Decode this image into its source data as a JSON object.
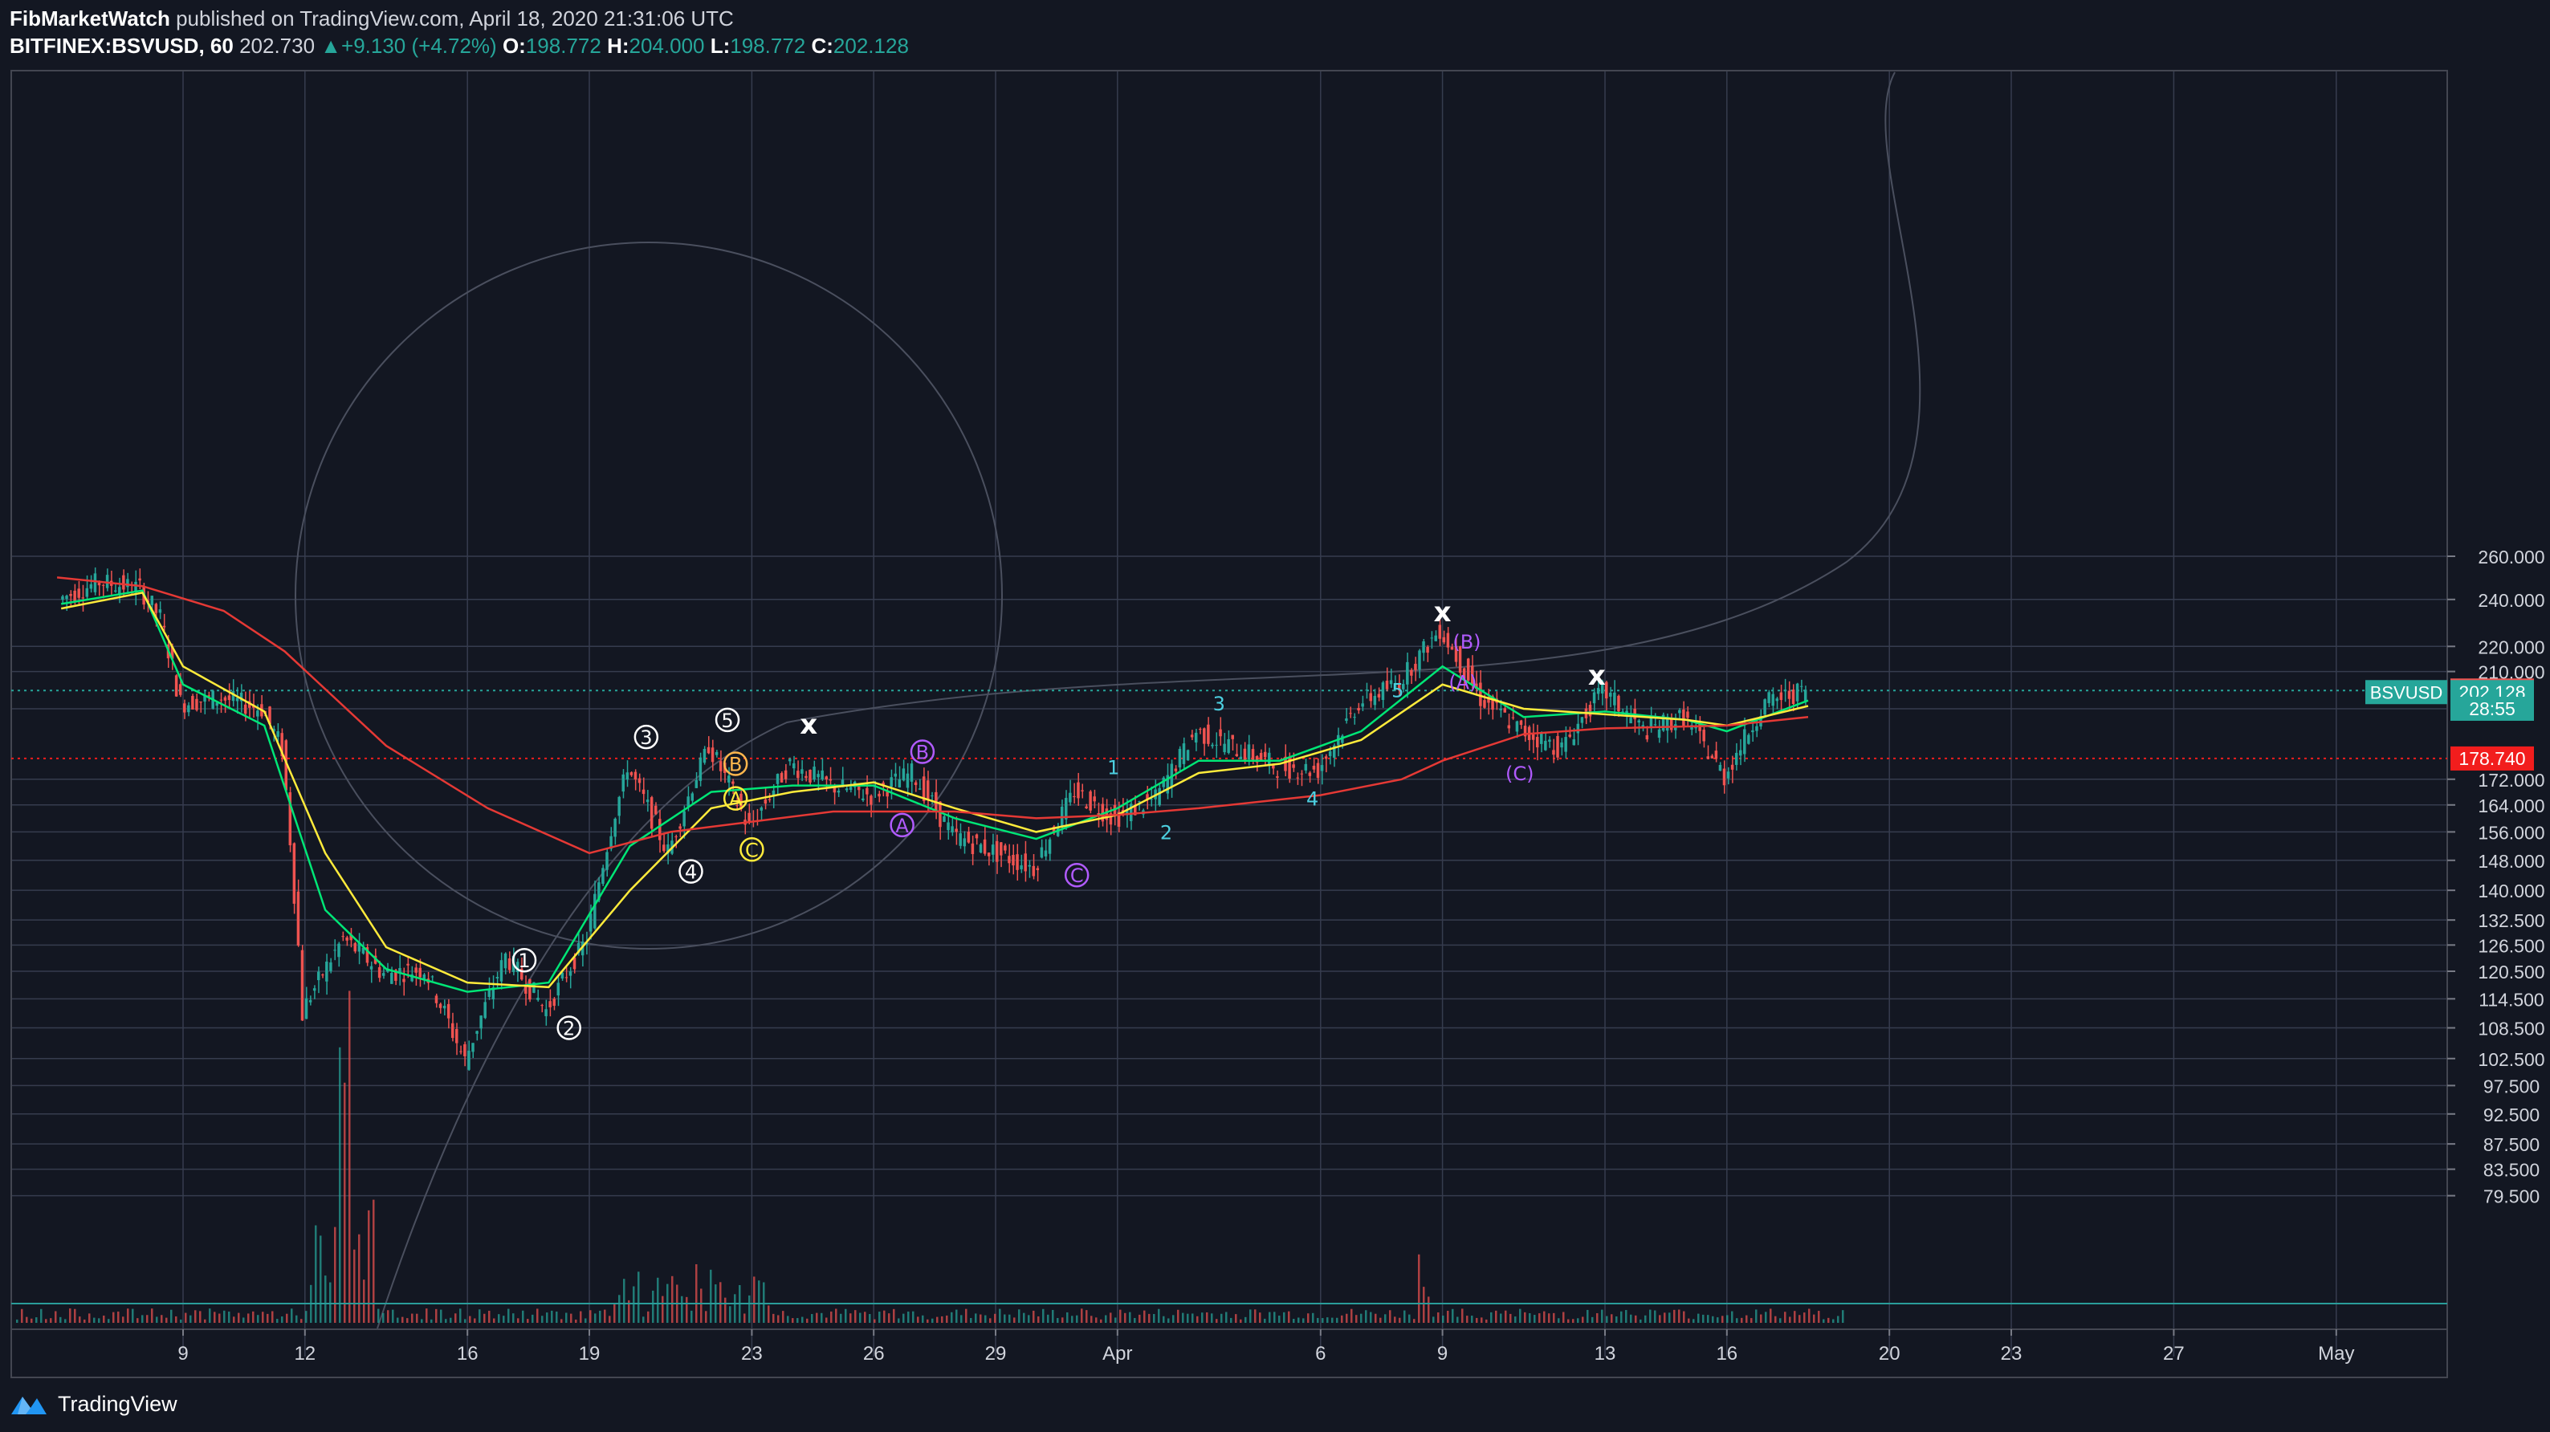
{
  "header": {
    "author": "FibMarketWatch",
    "published_text": "published on TradingView.com, April 18, 2020 21:31:06 UTC",
    "symbol": "BITFINEX:BSVUSD, 60",
    "last_price": "202.730",
    "change_arrow": "▲",
    "change": "+9.130 (+4.72%)",
    "open_label": "O:",
    "open": "198.772",
    "high_label": "H:",
    "high": "204.000",
    "low_label": "L:",
    "low": "198.772",
    "close_label": "C:",
    "close": "202.128"
  },
  "footer": {
    "brand": "TradingView"
  },
  "colors": {
    "background": "#131722",
    "grid": "#363c4e",
    "up": "#26a69a",
    "down": "#ef5350",
    "ema_short": "#00e676",
    "ema_mid": "#ffeb3b",
    "ema_long": "#e53935",
    "cyan_label": "#4dd0e1",
    "purple_label": "#b15bff",
    "white_label": "#ffffff",
    "orange_label": "#ffb74d"
  },
  "chart_data": {
    "type": "line",
    "title": "BITFINEX:BSVUSD, 60",
    "y_scale": "log",
    "y_ticks": [
      "260.000",
      "240.000",
      "220.000",
      "210.000",
      "202.730",
      "202.128",
      "172.000",
      "164.000",
      "156.000",
      "148.000",
      "140.000",
      "132.500",
      "126.500",
      "120.500",
      "114.500",
      "108.500",
      "102.500",
      "97.500",
      "92.500",
      "87.500",
      "83.500",
      "79.500"
    ],
    "x_ticks": [
      "9",
      "12",
      "16",
      "19",
      "23",
      "26",
      "29",
      "Apr",
      "6",
      "9",
      "13",
      "16",
      "20",
      "23",
      "27",
      "May"
    ],
    "price_path": [
      {
        "x": "Mar 6",
        "y": 240
      },
      {
        "x": "Mar 7",
        "y": 248
      },
      {
        "x": "Mar 8",
        "y": 245
      },
      {
        "x": "Mar 8.5",
        "y": 232
      },
      {
        "x": "Mar 9",
        "y": 198
      },
      {
        "x": "Mar 10",
        "y": 200
      },
      {
        "x": "Mar 11",
        "y": 196
      },
      {
        "x": "Mar 11.5",
        "y": 182
      },
      {
        "x": "Mar 12",
        "y": 112
      },
      {
        "x": "Mar 12.5",
        "y": 120
      },
      {
        "x": "Mar 13",
        "y": 128
      },
      {
        "x": "Mar 14",
        "y": 120
      },
      {
        "x": "Mar 15",
        "y": 121
      },
      {
        "x": "Mar 16",
        "y": 102
      },
      {
        "x": "Mar 17",
        "y": 124
      },
      {
        "x": "Mar 18",
        "y": 112
      },
      {
        "x": "Mar 19",
        "y": 128
      },
      {
        "x": "Mar 20",
        "y": 176
      },
      {
        "x": "Mar 21",
        "y": 150
      },
      {
        "x": "Mar 22",
        "y": 183
      },
      {
        "x": "Mar 23",
        "y": 157
      },
      {
        "x": "Mar 24",
        "y": 177
      },
      {
        "x": "Mar 25",
        "y": 170
      },
      {
        "x": "Mar 26",
        "y": 167
      },
      {
        "x": "Mar 27",
        "y": 174
      },
      {
        "x": "Mar 28",
        "y": 155
      },
      {
        "x": "Mar 30",
        "y": 146
      },
      {
        "x": "Mar 31",
        "y": 168
      },
      {
        "x": "Apr 1",
        "y": 160
      },
      {
        "x": "Apr 2",
        "y": 166
      },
      {
        "x": "Apr 3",
        "y": 188
      },
      {
        "x": "Apr 5",
        "y": 176
      },
      {
        "x": "Apr 6",
        "y": 175
      },
      {
        "x": "Apr 7",
        "y": 198
      },
      {
        "x": "Apr 8",
        "y": 206
      },
      {
        "x": "Apr 9",
        "y": 227
      },
      {
        "x": "Apr 10",
        "y": 200
      },
      {
        "x": "Apr 11",
        "y": 188
      },
      {
        "x": "Apr 12",
        "y": 182
      },
      {
        "x": "Apr 13",
        "y": 203
      },
      {
        "x": "Apr 14",
        "y": 188
      },
      {
        "x": "Apr 15",
        "y": 193
      },
      {
        "x": "Apr 16",
        "y": 173
      },
      {
        "x": "Apr 17",
        "y": 198
      },
      {
        "x": "Apr 18",
        "y": 203
      }
    ],
    "series": [
      {
        "name": "",
        "color": "#00e676",
        "points": [
          {
            "x": "Mar 6",
            "y": 238
          },
          {
            "x": "Mar 8",
            "y": 244
          },
          {
            "x": "Mar 9",
            "y": 205
          },
          {
            "x": "Mar 11",
            "y": 190
          },
          {
            "x": "Mar 12.5",
            "y": 135
          },
          {
            "x": "Mar 14",
            "y": 121
          },
          {
            "x": "Mar 16",
            "y": 116
          },
          {
            "x": "Mar 18",
            "y": 118
          },
          {
            "x": "Mar 20",
            "y": 152
          },
          {
            "x": "Mar 22",
            "y": 168
          },
          {
            "x": "Mar 24",
            "y": 170
          },
          {
            "x": "Mar 26",
            "y": 170
          },
          {
            "x": "Mar 28",
            "y": 160
          },
          {
            "x": "Mar 30",
            "y": 154
          },
          {
            "x": "Apr 1",
            "y": 163
          },
          {
            "x": "Apr 3",
            "y": 178
          },
          {
            "x": "Apr 5",
            "y": 178
          },
          {
            "x": "Apr 7",
            "y": 188
          },
          {
            "x": "Apr 9",
            "y": 212
          },
          {
            "x": "Apr 11",
            "y": 193
          },
          {
            "x": "Apr 13",
            "y": 195
          },
          {
            "x": "Apr 15",
            "y": 192
          },
          {
            "x": "Apr 16",
            "y": 188
          },
          {
            "x": "Apr 18",
            "y": 199
          }
        ]
      },
      {
        "name": "",
        "color": "#ffeb3b",
        "points": [
          {
            "x": "Mar 6",
            "y": 236
          },
          {
            "x": "Mar 8",
            "y": 243
          },
          {
            "x": "Mar 9",
            "y": 212
          },
          {
            "x": "Mar 11",
            "y": 195
          },
          {
            "x": "Mar 12.5",
            "y": 150
          },
          {
            "x": "Mar 14",
            "y": 126
          },
          {
            "x": "Mar 16",
            "y": 118
          },
          {
            "x": "Mar 18",
            "y": 117
          },
          {
            "x": "Mar 20",
            "y": 140
          },
          {
            "x": "Mar 22",
            "y": 163
          },
          {
            "x": "Mar 24",
            "y": 168
          },
          {
            "x": "Mar 26",
            "y": 171
          },
          {
            "x": "Mar 28",
            "y": 163
          },
          {
            "x": "Mar 30",
            "y": 156
          },
          {
            "x": "Apr 1",
            "y": 161
          },
          {
            "x": "Apr 3",
            "y": 174
          },
          {
            "x": "Apr 5",
            "y": 177
          },
          {
            "x": "Apr 7",
            "y": 185
          },
          {
            "x": "Apr 9",
            "y": 205
          },
          {
            "x": "Apr 11",
            "y": 196
          },
          {
            "x": "Apr 13",
            "y": 194
          },
          {
            "x": "Apr 15",
            "y": 192
          },
          {
            "x": "Apr 16",
            "y": 190
          },
          {
            "x": "Apr 18",
            "y": 197
          }
        ]
      },
      {
        "name": "",
        "color": "#e53935",
        "points": [
          {
            "x": "Mar 5.9",
            "y": 250
          },
          {
            "x": "Mar 8",
            "y": 246
          },
          {
            "x": "Mar 10",
            "y": 235
          },
          {
            "x": "Mar 11.5",
            "y": 218
          },
          {
            "x": "Mar 14",
            "y": 183
          },
          {
            "x": "Mar 16.5",
            "y": 163
          },
          {
            "x": "Mar 19",
            "y": 150
          },
          {
            "x": "Mar 21",
            "y": 156
          },
          {
            "x": "Mar 25",
            "y": 162
          },
          {
            "x": "Mar 28",
            "y": 162
          },
          {
            "x": "Mar 30",
            "y": 160
          },
          {
            "x": "Apr 1",
            "y": 161
          },
          {
            "x": "Apr 3",
            "y": 163
          },
          {
            "x": "Apr 6",
            "y": 167
          },
          {
            "x": "Apr 8",
            "y": 172
          },
          {
            "x": "Apr 9",
            "y": 178
          },
          {
            "x": "Apr 11",
            "y": 187
          },
          {
            "x": "Apr 13",
            "y": 189
          },
          {
            "x": "Apr 16",
            "y": 190
          },
          {
            "x": "Apr 18",
            "y": 193
          }
        ]
      }
    ],
    "price_labels": [
      {
        "text": "202.730",
        "value": 202.73,
        "color": "#ef5350"
      },
      {
        "text": "202.128",
        "value": 202.128,
        "color": "#26a69a",
        "tag": "BSVUSD"
      },
      {
        "text": "28:55",
        "value": 196,
        "color": "#26a69a"
      },
      {
        "text": "178.740",
        "value": 178.74,
        "color": "#f21d1d"
      }
    ],
    "horizontal_lines": [
      {
        "value": 202.73,
        "color": "#26a69a",
        "style": "dotted"
      },
      {
        "value": 178.74,
        "color": "#f21d1d",
        "style": "dotted"
      }
    ],
    "wave_labels": [
      {
        "text": "1",
        "x": "Mar 17.4",
        "y": 123,
        "color": "#ffffff",
        "circle": true
      },
      {
        "text": "2",
        "x": "Mar 18.5",
        "y": 108.5,
        "color": "#ffffff",
        "circle": true
      },
      {
        "text": "3",
        "x": "Mar 20.4",
        "y": 186,
        "color": "#ffffff",
        "circle": true
      },
      {
        "text": "4",
        "x": "Mar 21.5",
        "y": 145,
        "color": "#ffffff",
        "circle": true
      },
      {
        "text": "5",
        "x": "Mar 22.4",
        "y": 192,
        "color": "#ffffff",
        "circle": true
      },
      {
        "text": "B",
        "x": "Mar 22.6",
        "y": 177,
        "color": "#ffb74d",
        "circle": true
      },
      {
        "text": "A",
        "x": "Mar 22.6",
        "y": 166,
        "color": "#ffeb3b",
        "circle": true
      },
      {
        "text": "C",
        "x": "Mar 23",
        "y": 151,
        "color": "#ffeb3b",
        "circle": true
      },
      {
        "text": "x",
        "x": "Mar 24.4",
        "y": 190,
        "color": "#ffffff",
        "circle": false
      },
      {
        "text": "B",
        "x": "Mar 27.2",
        "y": 181,
        "color": "#b15bff",
        "circle": true
      },
      {
        "text": "A",
        "x": "Mar 26.7",
        "y": 158,
        "color": "#b15bff",
        "circle": true
      },
      {
        "text": "C",
        "x": "Mar 31",
        "y": 144,
        "color": "#b15bff",
        "circle": true
      },
      {
        "text": "1",
        "x": "Mar 31.9",
        "y": 176,
        "color": "#4dd0e1",
        "circle": false
      },
      {
        "text": "2",
        "x": "Apr 2.2",
        "y": 156,
        "color": "#4dd0e1",
        "circle": false
      },
      {
        "text": "3",
        "x": "Apr 3.5",
        "y": 198,
        "color": "#4dd0e1",
        "circle": false
      },
      {
        "text": "4",
        "x": "Apr 5.8",
        "y": 166,
        "color": "#4dd0e1",
        "circle": false
      },
      {
        "text": "5",
        "x": "Apr 7.9",
        "y": 203,
        "color": "#4dd0e1",
        "circle": false
      },
      {
        "text": "x",
        "x": "Apr 9",
        "y": 234,
        "color": "#ffffff",
        "circle": false
      },
      {
        "text": "(B)",
        "x": "Apr 9.6",
        "y": 222,
        "color": "#b15bff",
        "circle": false
      },
      {
        "text": "(A)",
        "x": "Apr 9.5",
        "y": 206,
        "color": "#b15bff",
        "circle": false
      },
      {
        "text": "(C)",
        "x": "Apr 10.9",
        "y": 174,
        "color": "#b15bff",
        "circle": false
      },
      {
        "text": "x",
        "x": "Apr 12.8",
        "y": 208,
        "color": "#ffffff",
        "circle": false
      }
    ]
  }
}
